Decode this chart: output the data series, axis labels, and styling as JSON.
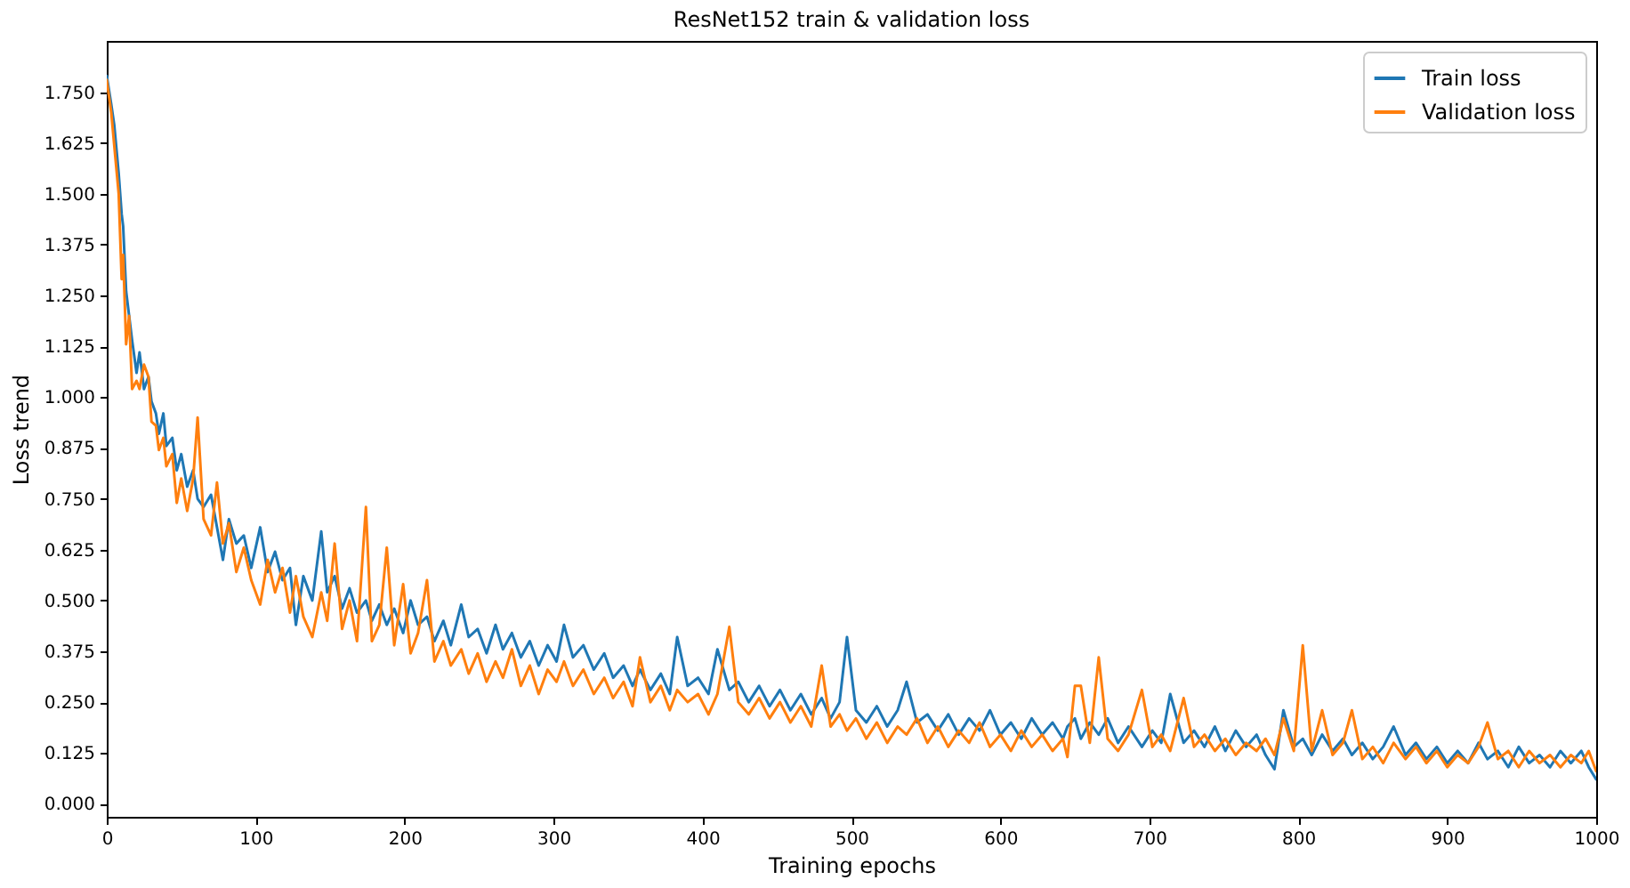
{
  "chart_data": {
    "type": "line",
    "title": "ResNet152 train & validation loss",
    "xlabel": "Training epochs",
    "ylabel": "Loss trend",
    "x": [
      0,
      3,
      5,
      8,
      10,
      11,
      13,
      15,
      17,
      20,
      22,
      25,
      28,
      30,
      33,
      35,
      38,
      40,
      44,
      47,
      50,
      54,
      58,
      61,
      65,
      70,
      74,
      78,
      82,
      87,
      92,
      97,
      103,
      108,
      113,
      118,
      123,
      127,
      132,
      138,
      144,
      148,
      153,
      158,
      163,
      168,
      174,
      178,
      183,
      188,
      193,
      199,
      204,
      209,
      215,
      220,
      226,
      231,
      238,
      243,
      249,
      255,
      261,
      266,
      272,
      278,
      284,
      290,
      296,
      302,
      307,
      313,
      320,
      327,
      334,
      340,
      347,
      353,
      358,
      365,
      372,
      378,
      383,
      390,
      397,
      404,
      410,
      418,
      424,
      431,
      438,
      445,
      452,
      459,
      466,
      473,
      480,
      486,
      492,
      497,
      503,
      510,
      517,
      524,
      531,
      537,
      544,
      551,
      558,
      565,
      572,
      579,
      586,
      593,
      600,
      607,
      614,
      621,
      628,
      635,
      642,
      645,
      650,
      654,
      660,
      666,
      672,
      679,
      686,
      695,
      702,
      708,
      714,
      723,
      730,
      737,
      744,
      751,
      758,
      765,
      772,
      778,
      784,
      790,
      797,
      803,
      809,
      816,
      823,
      830,
      836,
      843,
      850,
      857,
      864,
      872,
      879,
      886,
      893,
      900,
      907,
      914,
      921,
      927,
      934,
      941,
      948,
      955,
      962,
      969,
      976,
      983,
      990,
      995,
      1000
    ],
    "series": [
      {
        "name": "Train loss",
        "color": "#1f77b4",
        "values": [
          1.79,
          1.72,
          1.67,
          1.55,
          1.45,
          1.42,
          1.26,
          1.2,
          1.14,
          1.06,
          1.11,
          1.02,
          1.05,
          0.99,
          0.96,
          0.91,
          0.96,
          0.88,
          0.9,
          0.82,
          0.86,
          0.78,
          0.82,
          0.75,
          0.73,
          0.76,
          0.68,
          0.6,
          0.7,
          0.64,
          0.66,
          0.58,
          0.68,
          0.57,
          0.62,
          0.55,
          0.58,
          0.44,
          0.56,
          0.5,
          0.67,
          0.52,
          0.56,
          0.48,
          0.53,
          0.47,
          0.5,
          0.45,
          0.49,
          0.44,
          0.48,
          0.42,
          0.5,
          0.44,
          0.46,
          0.4,
          0.45,
          0.39,
          0.49,
          0.41,
          0.43,
          0.37,
          0.44,
          0.38,
          0.42,
          0.36,
          0.4,
          0.34,
          0.39,
          0.35,
          0.44,
          0.36,
          0.39,
          0.33,
          0.37,
          0.31,
          0.34,
          0.29,
          0.33,
          0.28,
          0.32,
          0.27,
          0.41,
          0.29,
          0.31,
          0.27,
          0.38,
          0.28,
          0.3,
          0.25,
          0.29,
          0.24,
          0.28,
          0.23,
          0.27,
          0.22,
          0.26,
          0.21,
          0.25,
          0.41,
          0.23,
          0.2,
          0.24,
          0.19,
          0.23,
          0.3,
          0.2,
          0.22,
          0.18,
          0.22,
          0.17,
          0.21,
          0.18,
          0.23,
          0.17,
          0.2,
          0.16,
          0.21,
          0.17,
          0.2,
          0.16,
          0.19,
          0.21,
          0.16,
          0.2,
          0.17,
          0.21,
          0.15,
          0.19,
          0.14,
          0.18,
          0.15,
          0.27,
          0.15,
          0.18,
          0.14,
          0.19,
          0.13,
          0.18,
          0.14,
          0.17,
          0.12,
          0.085,
          0.23,
          0.14,
          0.16,
          0.12,
          0.17,
          0.13,
          0.16,
          0.12,
          0.15,
          0.11,
          0.14,
          0.19,
          0.12,
          0.15,
          0.11,
          0.14,
          0.1,
          0.13,
          0.1,
          0.15,
          0.11,
          0.13,
          0.09,
          0.14,
          0.1,
          0.12,
          0.09,
          0.13,
          0.1,
          0.13,
          0.09,
          0.06
        ]
      },
      {
        "name": "Validation loss",
        "color": "#ff7f0e",
        "values": [
          1.78,
          1.7,
          1.62,
          1.5,
          1.29,
          1.35,
          1.13,
          1.2,
          1.02,
          1.04,
          1.02,
          1.08,
          1.05,
          0.94,
          0.93,
          0.87,
          0.9,
          0.83,
          0.86,
          0.74,
          0.8,
          0.72,
          0.8,
          0.95,
          0.7,
          0.66,
          0.79,
          0.64,
          0.69,
          0.57,
          0.63,
          0.55,
          0.49,
          0.6,
          0.52,
          0.58,
          0.47,
          0.56,
          0.46,
          0.41,
          0.52,
          0.45,
          0.64,
          0.43,
          0.5,
          0.4,
          0.73,
          0.4,
          0.44,
          0.63,
          0.39,
          0.54,
          0.37,
          0.42,
          0.55,
          0.35,
          0.4,
          0.34,
          0.38,
          0.32,
          0.37,
          0.3,
          0.35,
          0.31,
          0.38,
          0.29,
          0.34,
          0.27,
          0.33,
          0.3,
          0.35,
          0.29,
          0.33,
          0.27,
          0.31,
          0.26,
          0.3,
          0.24,
          0.36,
          0.25,
          0.29,
          0.23,
          0.28,
          0.25,
          0.27,
          0.22,
          0.27,
          0.435,
          0.25,
          0.22,
          0.26,
          0.21,
          0.25,
          0.2,
          0.24,
          0.19,
          0.34,
          0.19,
          0.22,
          0.18,
          0.21,
          0.16,
          0.2,
          0.15,
          0.19,
          0.17,
          0.21,
          0.15,
          0.19,
          0.14,
          0.18,
          0.15,
          0.2,
          0.14,
          0.17,
          0.13,
          0.18,
          0.14,
          0.17,
          0.13,
          0.16,
          0.115,
          0.29,
          0.29,
          0.15,
          0.36,
          0.16,
          0.13,
          0.17,
          0.28,
          0.14,
          0.17,
          0.13,
          0.26,
          0.14,
          0.17,
          0.13,
          0.16,
          0.12,
          0.15,
          0.13,
          0.16,
          0.12,
          0.21,
          0.13,
          0.39,
          0.13,
          0.23,
          0.12,
          0.15,
          0.23,
          0.11,
          0.14,
          0.1,
          0.15,
          0.11,
          0.14,
          0.1,
          0.13,
          0.09,
          0.12,
          0.1,
          0.14,
          0.2,
          0.11,
          0.13,
          0.09,
          0.13,
          0.1,
          0.12,
          0.09,
          0.12,
          0.1,
          0.13,
          0.08
        ]
      }
    ],
    "xlim": [
      0,
      1000
    ],
    "ylim": [
      -0.032,
      1.876
    ],
    "xticks": [
      0,
      100,
      200,
      300,
      400,
      500,
      600,
      700,
      800,
      900,
      1000
    ],
    "yticks": [
      {
        "value": 0,
        "label": "0.000"
      },
      {
        "value": 0.125,
        "label": "0.125"
      },
      {
        "value": 0.25,
        "label": "0.250"
      },
      {
        "value": 0.375,
        "label": "0.375"
      },
      {
        "value": 0.5,
        "label": "0.500"
      },
      {
        "value": 0.625,
        "label": "0.625"
      },
      {
        "value": 0.75,
        "label": "0.750"
      },
      {
        "value": 0.875,
        "label": "0.875"
      },
      {
        "value": 1,
        "label": "1.000"
      },
      {
        "value": 1.125,
        "label": "1.125"
      },
      {
        "value": 1.25,
        "label": "1.250"
      },
      {
        "value": 1.375,
        "label": "1.375"
      },
      {
        "value": 1.5,
        "label": "1.500"
      },
      {
        "value": 1.625,
        "label": "1.625"
      },
      {
        "value": 1.75,
        "label": "1.750"
      }
    ],
    "legend": "top right",
    "line_style": "solid"
  }
}
